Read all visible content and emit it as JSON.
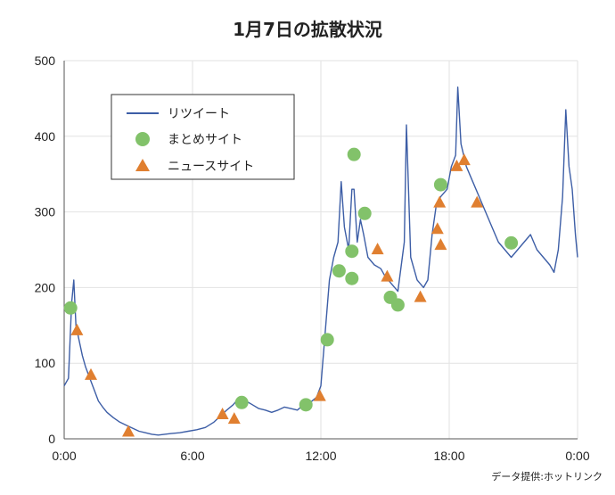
{
  "chart_data": {
    "type": "line",
    "title": "1月7日の拡散状況",
    "source": "データ提供:ホットリンク",
    "xlabel": "",
    "ylabel": "",
    "xlim": [
      0,
      24
    ],
    "ylim": [
      0,
      500
    ],
    "x_ticks": [
      {
        "label": "0:00",
        "value": 0
      },
      {
        "label": "6:00",
        "value": 6
      },
      {
        "label": "12:00",
        "value": 12
      },
      {
        "label": "18:00",
        "value": 18
      },
      {
        "label": "0:00",
        "value": 24
      }
    ],
    "y_ticks": [
      {
        "label": "0",
        "value": 0
      },
      {
        "label": "100",
        "value": 100
      },
      {
        "label": "200",
        "value": 200
      },
      {
        "label": "300",
        "value": 300
      },
      {
        "label": "400",
        "value": 400
      },
      {
        "label": "500",
        "value": 500
      }
    ],
    "legend": [
      {
        "label": "リツイート",
        "kind": "line",
        "color": "#3d5ea6"
      },
      {
        "label": "まとめサイト",
        "kind": "circle",
        "color": "#82c26a"
      },
      {
        "label": "ニュースサイト",
        "kind": "triangle",
        "color": "#e07f30"
      }
    ],
    "series": [
      {
        "name": "リツイート",
        "color": "#3d5ea6",
        "points": [
          [
            0.0,
            70
          ],
          [
            0.2,
            80
          ],
          [
            0.35,
            180
          ],
          [
            0.45,
            210
          ],
          [
            0.55,
            150
          ],
          [
            0.7,
            130
          ],
          [
            0.85,
            110
          ],
          [
            1.0,
            95
          ],
          [
            1.2,
            80
          ],
          [
            1.4,
            65
          ],
          [
            1.6,
            50
          ],
          [
            1.8,
            42
          ],
          [
            2.0,
            35
          ],
          [
            2.3,
            28
          ],
          [
            2.6,
            22
          ],
          [
            2.9,
            18
          ],
          [
            3.2,
            14
          ],
          [
            3.5,
            10
          ],
          [
            3.8,
            8
          ],
          [
            4.1,
            6
          ],
          [
            4.4,
            5
          ],
          [
            4.7,
            6
          ],
          [
            5.0,
            7
          ],
          [
            5.4,
            8
          ],
          [
            5.8,
            10
          ],
          [
            6.2,
            12
          ],
          [
            6.6,
            15
          ],
          [
            7.0,
            22
          ],
          [
            7.3,
            30
          ],
          [
            7.6,
            38
          ],
          [
            7.9,
            45
          ],
          [
            8.2,
            55
          ],
          [
            8.5,
            50
          ],
          [
            8.8,
            45
          ],
          [
            9.1,
            40
          ],
          [
            9.4,
            38
          ],
          [
            9.7,
            35
          ],
          [
            10.0,
            38
          ],
          [
            10.3,
            42
          ],
          [
            10.6,
            40
          ],
          [
            10.9,
            38
          ],
          [
            11.2,
            45
          ],
          [
            11.5,
            48
          ],
          [
            11.8,
            55
          ],
          [
            12.0,
            70
          ],
          [
            12.2,
            140
          ],
          [
            12.4,
            210
          ],
          [
            12.6,
            240
          ],
          [
            12.8,
            260
          ],
          [
            12.95,
            340
          ],
          [
            13.1,
            280
          ],
          [
            13.3,
            250
          ],
          [
            13.45,
            330
          ],
          [
            13.55,
            330
          ],
          [
            13.7,
            260
          ],
          [
            13.85,
            290
          ],
          [
            14.0,
            270
          ],
          [
            14.2,
            240
          ],
          [
            14.5,
            230
          ],
          [
            14.8,
            225
          ],
          [
            15.0,
            215
          ],
          [
            15.3,
            205
          ],
          [
            15.6,
            195
          ],
          [
            15.9,
            260
          ],
          [
            16.0,
            415
          ],
          [
            16.2,
            240
          ],
          [
            16.5,
            210
          ],
          [
            16.8,
            200
          ],
          [
            17.0,
            210
          ],
          [
            17.2,
            270
          ],
          [
            17.4,
            310
          ],
          [
            17.6,
            320
          ],
          [
            17.9,
            330
          ],
          [
            18.1,
            360
          ],
          [
            18.3,
            375
          ],
          [
            18.4,
            465
          ],
          [
            18.55,
            390
          ],
          [
            18.8,
            360
          ],
          [
            19.1,
            340
          ],
          [
            19.4,
            320
          ],
          [
            19.7,
            300
          ],
          [
            20.0,
            280
          ],
          [
            20.3,
            260
          ],
          [
            20.6,
            250
          ],
          [
            20.9,
            240
          ],
          [
            21.2,
            250
          ],
          [
            21.5,
            260
          ],
          [
            21.8,
            270
          ],
          [
            22.1,
            250
          ],
          [
            22.4,
            240
          ],
          [
            22.7,
            230
          ],
          [
            22.9,
            220
          ],
          [
            23.1,
            250
          ],
          [
            23.3,
            320
          ],
          [
            23.45,
            435
          ],
          [
            23.6,
            360
          ],
          [
            23.75,
            330
          ],
          [
            23.9,
            270
          ],
          [
            24.0,
            240
          ]
        ]
      },
      {
        "name": "まとめサイト",
        "color": "#82c26a",
        "points": [
          [
            0.3,
            173
          ],
          [
            8.3,
            48
          ],
          [
            11.3,
            45
          ],
          [
            12.3,
            131
          ],
          [
            12.85,
            222
          ],
          [
            13.45,
            212
          ],
          [
            13.45,
            248
          ],
          [
            13.55,
            376
          ],
          [
            14.05,
            298
          ],
          [
            15.25,
            187
          ],
          [
            15.6,
            177
          ],
          [
            17.6,
            336
          ],
          [
            20.9,
            259
          ]
        ]
      },
      {
        "name": "ニュースサイト",
        "color": "#e07f30",
        "points": [
          [
            0.6,
            144
          ],
          [
            1.25,
            85
          ],
          [
            3.0,
            10
          ],
          [
            7.4,
            33
          ],
          [
            7.95,
            27
          ],
          [
            11.95,
            57
          ],
          [
            14.65,
            251
          ],
          [
            15.1,
            215
          ],
          [
            16.65,
            188
          ],
          [
            17.45,
            278
          ],
          [
            17.55,
            313
          ],
          [
            17.6,
            257
          ],
          [
            18.35,
            361
          ],
          [
            18.7,
            369
          ],
          [
            19.3,
            313
          ]
        ]
      }
    ]
  }
}
